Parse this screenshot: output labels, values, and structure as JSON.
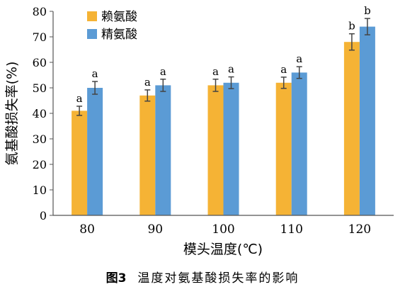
{
  "chart_data": {
    "type": "bar",
    "title": "",
    "xlabel": "模头温度(℃)",
    "ylabel": "氨基酸损失率(%)",
    "ylim": [
      0,
      80
    ],
    "yticks": [
      0,
      10,
      20,
      30,
      40,
      50,
      60,
      70,
      80
    ],
    "categories": [
      "80",
      "90",
      "100",
      "110",
      "120"
    ],
    "grid": false,
    "legend": "top-left",
    "series": [
      {
        "name": "赖氨酸",
        "color": "#F5B335",
        "values": [
          41,
          47,
          51,
          52,
          68
        ],
        "errors": [
          1.8,
          2.2,
          2.4,
          2.2,
          3.2
        ],
        "labels": [
          "a",
          "a",
          "a",
          "a",
          "b"
        ]
      },
      {
        "name": "精氨酸",
        "color": "#5B9BD5",
        "values": [
          50,
          51,
          52,
          56,
          74
        ],
        "errors": [
          2.5,
          2.4,
          2.3,
          2.3,
          3.2
        ],
        "labels": [
          "a",
          "a",
          "a",
          "a",
          "b"
        ]
      }
    ]
  },
  "caption": {
    "number": "图3",
    "text": "温度对氨基酸损失率的影响"
  }
}
